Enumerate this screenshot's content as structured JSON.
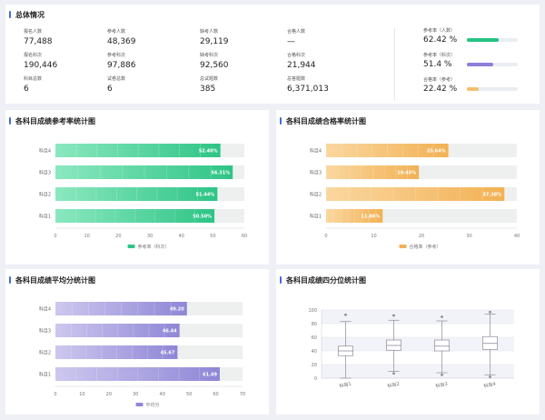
{
  "overview": {
    "title": "总体情况",
    "stats": [
      {
        "label": "报名人数",
        "value": "77,488"
      },
      {
        "label": "参考人数",
        "value": "48,369"
      },
      {
        "label": "缺考人数",
        "value": "29,119"
      },
      {
        "label": "合格人数",
        "value": "—"
      },
      {
        "label": "报名科次",
        "value": "190,446"
      },
      {
        "label": "参考科次",
        "value": "97,886"
      },
      {
        "label": "缺考科次",
        "value": "92,560"
      },
      {
        "label": "合格科次",
        "value": "21,944"
      },
      {
        "label": "科目总数",
        "value": "6"
      },
      {
        "label": "试卷总数",
        "value": "6"
      },
      {
        "label": "总试题数",
        "value": "385"
      },
      {
        "label": "总答题数",
        "value": "6,371,013"
      }
    ],
    "rates": [
      {
        "label": "参考率（人数）",
        "value": "62.42 %",
        "fraction": 0.6242,
        "color": "#26c281"
      },
      {
        "label": "参考率（科次）",
        "value": "51.4 %",
        "fraction": 0.514,
        "color": "#8b7fd8"
      },
      {
        "label": "合格率（参考）",
        "value": "22.42 %",
        "fraction": 0.2242,
        "color": "#f5bf6b"
      }
    ]
  },
  "panels": {
    "participation": {
      "title": "各科目成绩参考率统计图",
      "legend": "参考率（科次）",
      "chart_data": {
        "type": "bar",
        "orientation": "horizontal",
        "categories": [
          "科目4",
          "科目3",
          "科目2",
          "科目1"
        ],
        "values": [
          52.4,
          56.31,
          51.44,
          50.5
        ],
        "labels": [
          "52.40%",
          "56.31%",
          "51.44%",
          "50.50%"
        ],
        "xlim": [
          0,
          60
        ],
        "ticks": [
          0,
          10,
          20,
          30,
          40,
          50,
          60
        ],
        "color": "#2ec486",
        "light": "#8be8c0"
      }
    },
    "pass": {
      "title": "各科目成绩合格率统计图",
      "legend": "合格率（参考）",
      "chart_data": {
        "type": "bar",
        "orientation": "horizontal",
        "categories": [
          "科目4",
          "科目3",
          "科目2",
          "科目1"
        ],
        "values": [
          25.64,
          19.45,
          37.38,
          11.86
        ],
        "labels": [
          "25.64%",
          "19.45%",
          "37.38%",
          "11.86%"
        ],
        "xlim": [
          0,
          40
        ],
        "ticks": [
          0,
          10,
          20,
          30,
          40
        ],
        "color": "#f2b154",
        "light": "#fad79f"
      }
    },
    "average": {
      "title": "各科目成绩平均分统计图",
      "legend": "平均分",
      "chart_data": {
        "type": "bar",
        "orientation": "horizontal",
        "categories": [
          "科目4",
          "科目3",
          "科目2",
          "科目1"
        ],
        "values": [
          49.2,
          46.44,
          45.67,
          61.49
        ],
        "labels": [
          "49.20",
          "46.44",
          "45.67",
          "61.49"
        ],
        "xlim": [
          0,
          70
        ],
        "ticks": [
          0,
          10,
          20,
          30,
          40,
          50,
          60,
          70
        ],
        "color": "#8f86d6",
        "light": "#cdc8ef"
      }
    },
    "quartile": {
      "title": "各科目成绩四分位统计图",
      "chart_data": {
        "type": "boxplot",
        "categories": [
          "科目1",
          "科目2",
          "科目3",
          "科目4"
        ],
        "ylim": [
          0,
          100
        ],
        "ticks": [
          0,
          20,
          40,
          60,
          80,
          100
        ],
        "boxes": [
          {
            "min": 0,
            "q1": 33,
            "median": 40,
            "q3": 47,
            "max": 83,
            "outliers": [
              93
            ]
          },
          {
            "min": 10,
            "q1": 41,
            "median": 48,
            "q3": 56,
            "max": 85,
            "outliers": [
              92,
              7
            ]
          },
          {
            "min": 8,
            "q1": 40,
            "median": 47,
            "q3": 56,
            "max": 84,
            "outliers": [
              90,
              5
            ]
          },
          {
            "min": 5,
            "q1": 42,
            "median": 51,
            "q3": 61,
            "max": 94,
            "outliers": [
              97,
              2
            ]
          }
        ],
        "color": "#8a8a99",
        "band": "#f2f3f8"
      }
    }
  }
}
